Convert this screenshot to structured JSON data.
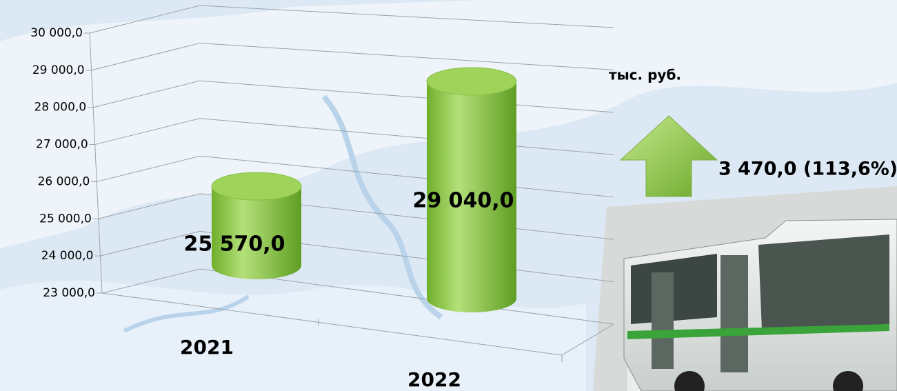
{
  "chart_data": {
    "type": "bar3d",
    "categories": [
      "2021",
      "2022"
    ],
    "values": [
      25570,
      29040
    ],
    "value_labels": [
      "25 570,0",
      "29 040,0"
    ],
    "color": "#8cc63f",
    "ylim": [
      23000,
      30000
    ],
    "yticks": [
      {
        "value": 23000,
        "label": "23 000,0"
      },
      {
        "value": 24000,
        "label": "24 000,0"
      },
      {
        "value": 25000,
        "label": "25 000,0"
      },
      {
        "value": 26000,
        "label": "26 000,0"
      },
      {
        "value": 27000,
        "label": "27 000,0"
      },
      {
        "value": 28000,
        "label": "28 000,0"
      },
      {
        "value": 29000,
        "label": "29 000,0"
      },
      {
        "value": 30000,
        "label": "30 000,0"
      }
    ],
    "grid": true,
    "unit_label": "тыс. руб.",
    "annotation": "3 470,0 (113,6%)"
  }
}
